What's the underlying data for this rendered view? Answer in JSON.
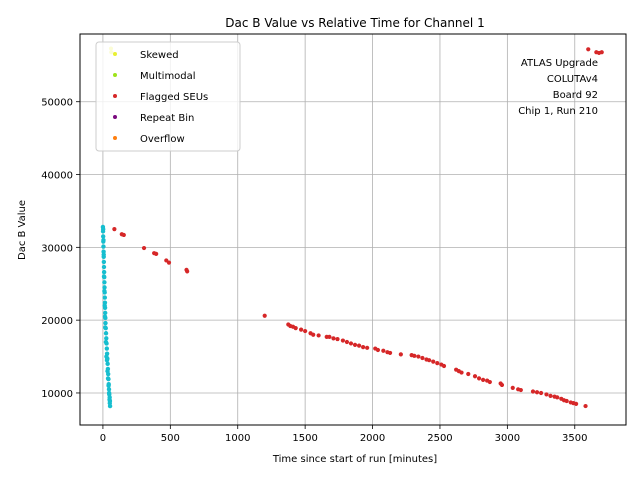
{
  "chart_data": {
    "type": "scatter",
    "title": "Dac B Value vs Relative Time for Channel 1",
    "xlabel": "Time since start of run [minutes]",
    "ylabel": "Dac B Value",
    "xlim": [
      -170,
      3880
    ],
    "ylim": [
      5600,
      59300
    ],
    "xticks": [
      0,
      500,
      1000,
      1500,
      2000,
      2500,
      3000,
      3500
    ],
    "yticks": [
      10000,
      20000,
      30000,
      40000,
      50000
    ],
    "grid": true,
    "legend_position": "top-left",
    "annotation": [
      "ATLAS Upgrade",
      "COLUTAv4",
      "Board 92",
      "Chip 1, Run 210"
    ],
    "series": [
      {
        "name": "Skewed",
        "color": "#e8f032",
        "points": [
          [
            60,
            57300
          ],
          [
            62,
            56800
          ]
        ]
      },
      {
        "name": "Multimodal",
        "color": "#9ee31a",
        "points": []
      },
      {
        "name": "Flagged SEUs",
        "color": "#d62728",
        "points": [
          [
            85,
            32500
          ],
          [
            140,
            31800
          ],
          [
            155,
            31700
          ],
          [
            305,
            29900
          ],
          [
            380,
            29200
          ],
          [
            395,
            29100
          ],
          [
            470,
            28200
          ],
          [
            490,
            27900
          ],
          [
            620,
            26900
          ],
          [
            625,
            26700
          ],
          [
            1200,
            20600
          ],
          [
            1375,
            19400
          ],
          [
            1390,
            19200
          ],
          [
            1410,
            19100
          ],
          [
            1430,
            18900
          ],
          [
            1470,
            18700
          ],
          [
            1500,
            18500
          ],
          [
            1540,
            18200
          ],
          [
            1560,
            18000
          ],
          [
            1600,
            17900
          ],
          [
            1660,
            17700
          ],
          [
            1680,
            17700
          ],
          [
            1710,
            17500
          ],
          [
            1740,
            17400
          ],
          [
            1780,
            17200
          ],
          [
            1810,
            17000
          ],
          [
            1840,
            16800
          ],
          [
            1870,
            16600
          ],
          [
            1900,
            16500
          ],
          [
            1930,
            16300
          ],
          [
            1960,
            16200
          ],
          [
            2020,
            16100
          ],
          [
            2040,
            15900
          ],
          [
            2080,
            15800
          ],
          [
            2110,
            15600
          ],
          [
            2130,
            15500
          ],
          [
            2210,
            15300
          ],
          [
            2290,
            15200
          ],
          [
            2310,
            15100
          ],
          [
            2340,
            15000
          ],
          [
            2370,
            14800
          ],
          [
            2400,
            14600
          ],
          [
            2420,
            14500
          ],
          [
            2450,
            14300
          ],
          [
            2480,
            14100
          ],
          [
            2510,
            13900
          ],
          [
            2530,
            13700
          ],
          [
            2620,
            13200
          ],
          [
            2640,
            13000
          ],
          [
            2660,
            12800
          ],
          [
            2710,
            12600
          ],
          [
            2760,
            12300
          ],
          [
            2790,
            12000
          ],
          [
            2820,
            11800
          ],
          [
            2850,
            11700
          ],
          [
            2870,
            11500
          ],
          [
            2950,
            11300
          ],
          [
            2960,
            11100
          ],
          [
            3040,
            10700
          ],
          [
            3080,
            10500
          ],
          [
            3100,
            10400
          ],
          [
            3190,
            10200
          ],
          [
            3220,
            10100
          ],
          [
            3250,
            10000
          ],
          [
            3290,
            9800
          ],
          [
            3320,
            9600
          ],
          [
            3350,
            9500
          ],
          [
            3370,
            9400
          ],
          [
            3400,
            9200
          ],
          [
            3420,
            9000
          ],
          [
            3440,
            8900
          ],
          [
            3470,
            8700
          ],
          [
            3490,
            8600
          ],
          [
            3510,
            8500
          ],
          [
            3580,
            8200
          ],
          [
            3600,
            57200
          ],
          [
            3660,
            56800
          ],
          [
            3680,
            56700
          ],
          [
            3700,
            56800
          ]
        ]
      },
      {
        "name": "Repeat Bin",
        "color": "#7b0a7f",
        "points": []
      },
      {
        "name": "Overflow",
        "color": "#ff7f0e",
        "points": []
      },
      {
        "name": "",
        "color": "#17becf",
        "legend": false,
        "points": [
          [
            0,
            32800
          ],
          [
            1,
            32200
          ],
          [
            2,
            31500
          ],
          [
            3,
            30800
          ],
          [
            4,
            30100
          ],
          [
            5,
            29400
          ],
          [
            6,
            28700
          ],
          [
            7,
            28000
          ],
          [
            8,
            27300
          ],
          [
            9,
            26600
          ],
          [
            10,
            25900
          ],
          [
            11,
            25200
          ],
          [
            12,
            24500
          ],
          [
            13,
            23800
          ],
          [
            14,
            23100
          ],
          [
            15,
            22400
          ],
          [
            16,
            21700
          ],
          [
            17,
            21000
          ],
          [
            18,
            20300
          ],
          [
            19,
            19600
          ],
          [
            21,
            18900
          ],
          [
            23,
            18200
          ],
          [
            25,
            17500
          ],
          [
            27,
            16800
          ],
          [
            29,
            16100
          ],
          [
            31,
            15400
          ],
          [
            33,
            14700
          ],
          [
            35,
            14000
          ],
          [
            37,
            13300
          ],
          [
            39,
            12600
          ],
          [
            41,
            11900
          ],
          [
            43,
            11200
          ],
          [
            45,
            10500
          ],
          [
            47,
            9800
          ],
          [
            49,
            9100
          ],
          [
            51,
            8600
          ],
          [
            53,
            8200
          ],
          [
            2,
            32500
          ],
          [
            4,
            31000
          ],
          [
            6,
            29000
          ],
          [
            8,
            26000
          ],
          [
            11,
            24000
          ],
          [
            13,
            22000
          ],
          [
            15,
            20500
          ],
          [
            17,
            19000
          ],
          [
            22,
            17000
          ],
          [
            26,
            15000
          ],
          [
            30,
            14500
          ],
          [
            34,
            13000
          ],
          [
            38,
            12000
          ],
          [
            42,
            11000
          ],
          [
            46,
            10000
          ],
          [
            50,
            9400
          ],
          [
            52,
            8900
          ]
        ]
      }
    ]
  }
}
